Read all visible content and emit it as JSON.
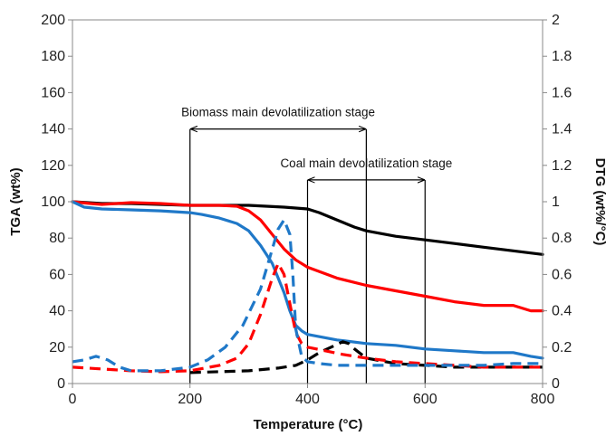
{
  "chart_data": {
    "type": "line",
    "xlabel": "Temperature (°C)",
    "ylabel": "TGA (wt%)",
    "y2label": "DTG (wt%/°C)",
    "xlim": [
      0,
      800
    ],
    "ylim": [
      0,
      200
    ],
    "y2lim": [
      0,
      2
    ],
    "x_ticks": [
      0,
      200,
      400,
      600,
      800
    ],
    "y_ticks": [
      0,
      20,
      40,
      60,
      80,
      100,
      120,
      140,
      160,
      180,
      200
    ],
    "y2_ticks": [
      "0",
      "0.2",
      "0.4",
      "0.6",
      "0.8",
      "1",
      "1.2",
      "1.4",
      "1.6",
      "1.8",
      "2"
    ],
    "grid": false,
    "legend": "none",
    "series": [
      {
        "axis": "left",
        "style": "solid",
        "color": "#000000",
        "x": [
          0,
          50,
          100,
          150,
          200,
          250,
          300,
          330,
          360,
          380,
          400,
          420,
          450,
          480,
          500,
          550,
          600,
          650,
          700,
          750,
          800
        ],
        "y": [
          100,
          99,
          99,
          98.5,
          98,
          98,
          98,
          97.5,
          97,
          96.5,
          96,
          94,
          90,
          86,
          84,
          81,
          79,
          77,
          75,
          73,
          71
        ]
      },
      {
        "axis": "left",
        "style": "solid",
        "color": "#ff0000",
        "x": [
          0,
          30,
          50,
          100,
          150,
          200,
          250,
          280,
          300,
          320,
          340,
          360,
          380,
          400,
          450,
          500,
          550,
          600,
          650,
          700,
          750,
          780,
          800
        ],
        "y": [
          100,
          99,
          98.5,
          99.5,
          99,
          98,
          98,
          97.5,
          95,
          90,
          82,
          74,
          68,
          64,
          58,
          54,
          51,
          48,
          45,
          43,
          43,
          40,
          40
        ]
      },
      {
        "axis": "left",
        "style": "solid",
        "color": "#1f78c8",
        "x": [
          0,
          20,
          50,
          100,
          150,
          200,
          220,
          250,
          280,
          300,
          320,
          340,
          360,
          370,
          380,
          390,
          400,
          450,
          500,
          550,
          600,
          650,
          700,
          750,
          780,
          800
        ],
        "y": [
          100,
          97,
          96,
          95.5,
          95,
          94,
          93,
          91,
          88,
          84,
          76,
          66,
          50,
          40,
          32,
          29,
          27,
          24,
          22,
          21,
          19,
          18,
          17,
          17,
          15,
          14
        ]
      },
      {
        "axis": "right",
        "style": "dashed",
        "color": "#000000",
        "x": [
          200,
          250,
          300,
          350,
          380,
          400,
          420,
          440,
          460,
          470,
          480,
          500,
          550,
          600,
          650,
          700,
          750,
          800
        ],
        "y": [
          0.06,
          0.065,
          0.07,
          0.085,
          0.1,
          0.13,
          0.17,
          0.2,
          0.23,
          0.22,
          0.19,
          0.14,
          0.11,
          0.1,
          0.09,
          0.09,
          0.09,
          0.09
        ]
      },
      {
        "axis": "right",
        "style": "dashed",
        "color": "#ff0000",
        "x": [
          0,
          50,
          100,
          150,
          200,
          250,
          280,
          300,
          320,
          340,
          350,
          360,
          370,
          380,
          390,
          400,
          430,
          460,
          500,
          550,
          600,
          650,
          700,
          750,
          800
        ],
        "y": [
          0.09,
          0.08,
          0.07,
          0.065,
          0.07,
          0.1,
          0.14,
          0.22,
          0.38,
          0.58,
          0.66,
          0.6,
          0.44,
          0.28,
          0.22,
          0.2,
          0.18,
          0.16,
          0.14,
          0.12,
          0.11,
          0.1,
          0.09,
          0.09,
          0.09
        ]
      },
      {
        "axis": "right",
        "style": "dashed",
        "color": "#1f78c8",
        "x": [
          0,
          20,
          40,
          60,
          80,
          100,
          150,
          200,
          230,
          260,
          290,
          320,
          340,
          350,
          360,
          370,
          375,
          380,
          390,
          400,
          420,
          450,
          500,
          550,
          600,
          650,
          700,
          750,
          800
        ],
        "y": [
          0.12,
          0.13,
          0.15,
          0.13,
          0.09,
          0.07,
          0.07,
          0.09,
          0.13,
          0.2,
          0.32,
          0.52,
          0.74,
          0.85,
          0.9,
          0.82,
          0.6,
          0.3,
          0.15,
          0.12,
          0.11,
          0.1,
          0.1,
          0.1,
          0.1,
          0.1,
          0.1,
          0.11,
          0.11
        ]
      }
    ],
    "annotations": [
      {
        "text": "Biomass  main devolatilization stage",
        "x_start": 200,
        "x_end": 500,
        "y": 140
      },
      {
        "text": "Coal main devolatilization stage",
        "x_start": 400,
        "x_end": 600,
        "y": 112
      }
    ]
  }
}
